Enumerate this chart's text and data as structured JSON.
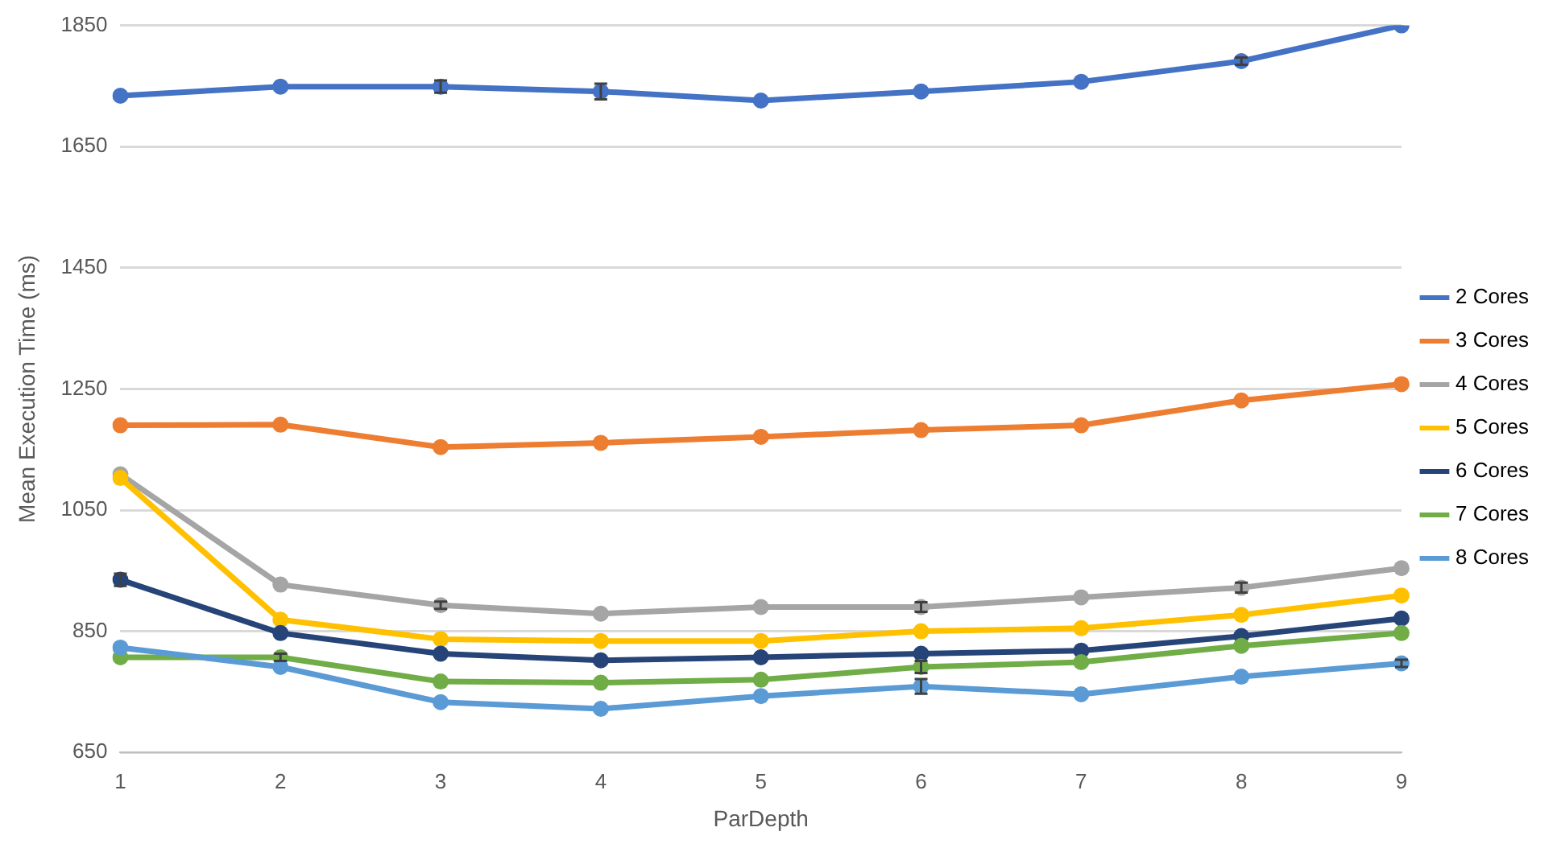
{
  "chart_data": {
    "type": "line",
    "xlabel": "ParDepth",
    "ylabel": "Mean Execution Time (ms)",
    "categories": [
      "1",
      "2",
      "3",
      "4",
      "5",
      "6",
      "7",
      "8",
      "9"
    ],
    "ylim": [
      650,
      1850
    ],
    "yticks": [
      650,
      850,
      1050,
      1250,
      1450,
      1650,
      1850
    ],
    "grid": "y",
    "legend": "right",
    "marker": "circle",
    "line_style": "solid",
    "series": [
      {
        "name": "2 Cores",
        "color": "#4472c4",
        "values": [
          1734,
          1749,
          1749,
          1741,
          1726,
          1741,
          1757,
          1791,
          1850
        ],
        "errors": [
          null,
          null,
          10,
          13,
          null,
          null,
          null,
          6,
          null
        ]
      },
      {
        "name": "3 Cores",
        "color": "#ed7d31",
        "values": [
          1190,
          1191,
          1154,
          1161,
          1171,
          1182,
          1190,
          1231,
          1258
        ]
      },
      {
        "name": "4 Cores",
        "color": "#a5a5a5",
        "values": [
          1109,
          927,
          893,
          879,
          890,
          890,
          906,
          922,
          954
        ],
        "errors": [
          null,
          null,
          6,
          null,
          null,
          8,
          null,
          8,
          null
        ]
      },
      {
        "name": "5 Cores",
        "color": "#ffc000",
        "values": [
          1103,
          869,
          837,
          834,
          834,
          850,
          855,
          877,
          909
        ]
      },
      {
        "name": "6 Cores",
        "color": "#264478",
        "values": [
          935,
          847,
          813,
          802,
          807,
          813,
          818,
          842,
          871
        ],
        "errors": [
          10,
          null,
          null,
          null,
          null,
          null,
          null,
          null,
          null
        ]
      },
      {
        "name": "7 Cores",
        "color": "#70ad47",
        "values": [
          807,
          807,
          767,
          765,
          770,
          791,
          799,
          826,
          847
        ],
        "errors": [
          null,
          6,
          null,
          null,
          null,
          10,
          null,
          null,
          null
        ]
      },
      {
        "name": "8 Cores",
        "color": "#5b9bd5",
        "values": [
          823,
          791,
          733,
          722,
          743,
          759,
          746,
          775,
          797
        ],
        "errors": [
          null,
          null,
          null,
          null,
          null,
          12,
          null,
          null,
          6
        ]
      }
    ]
  }
}
